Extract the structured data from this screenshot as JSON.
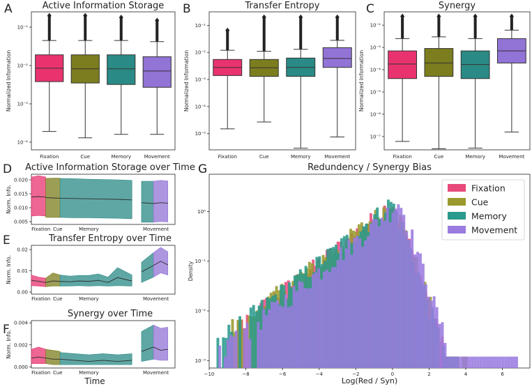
{
  "figure": {
    "categories": [
      "Fixation",
      "Cue",
      "Memory",
      "Movement"
    ],
    "colors": {
      "Fixation": "#e8336f",
      "Cue": "#7c7d1e",
      "Memory": "#2a8a85",
      "Movement": "#9273d6"
    },
    "hist_colors": {
      "Fixation": "#e84a7a",
      "Cue": "#9a9a2e",
      "Memory": "#2a9a8c",
      "Movement": "#9a7be0"
    }
  },
  "chart_data": [
    {
      "id": "A",
      "type": "box",
      "panel_label": "A",
      "title": "Active Information Storage",
      "ylabel": "Normalized Information",
      "yscale": "log",
      "yticks": [
        0.0001,
        0.001,
        0.01,
        0.1
      ],
      "yticklabels": [
        "10⁻⁴",
        "10⁻³",
        "10⁻²",
        "10⁻¹"
      ],
      "ylim_log10": [
        -4.2,
        -0.6
      ],
      "categories": [
        "Fixation",
        "Cue",
        "Memory",
        "Movement"
      ],
      "boxes": [
        {
          "whislo": 0.00019,
          "q1": 0.0038,
          "med": 0.0085,
          "q3": 0.019,
          "whishi": 0.045,
          "flier_top": 0.2
        },
        {
          "whislo": 0.00013,
          "q1": 0.0035,
          "med": 0.0082,
          "q3": 0.019,
          "whishi": 0.045,
          "flier_top": 0.2
        },
        {
          "whislo": 0.00016,
          "q1": 0.0032,
          "med": 0.0082,
          "q3": 0.019,
          "whishi": 0.045,
          "flier_top": 0.18
        },
        {
          "whislo": 0.00016,
          "q1": 0.0027,
          "med": 0.0072,
          "q3": 0.017,
          "whishi": 0.042,
          "flier_top": 0.15
        }
      ]
    },
    {
      "id": "B",
      "type": "box",
      "panel_label": "B",
      "title": "Transfer Entropy",
      "ylabel": "Normalized Information",
      "yscale": "log",
      "yticks": [
        1e-05,
        0.0001,
        0.001,
        0.01,
        0.1
      ],
      "yticklabels": [
        "10⁻⁵",
        "10⁻⁴",
        "10⁻³",
        "10⁻²",
        "10⁻¹"
      ],
      "ylim_log10": [
        -5.6,
        -0.5
      ],
      "categories": [
        "Fixation",
        "Cue",
        "Memory",
        "Movement"
      ],
      "boxes": [
        {
          "whislo": 1.5e-05,
          "q1": 0.0014,
          "med": 0.0028,
          "q3": 0.0055,
          "whishi": 0.012,
          "flier_top": 0.065
        },
        {
          "whislo": 2.7e-05,
          "q1": 0.0013,
          "med": 0.0027,
          "q3": 0.0055,
          "whishi": 0.011,
          "flier_top": 0.2
        },
        {
          "whislo": 2.9e-06,
          "q1": 0.0013,
          "med": 0.0028,
          "q3": 0.0062,
          "whishi": 0.013,
          "flier_top": 0.2
        },
        {
          "whislo": 7.5e-06,
          "q1": 0.0028,
          "med": 0.006,
          "q3": 0.015,
          "whishi": 0.028,
          "flier_top": 0.2
        }
      ]
    },
    {
      "id": "C",
      "type": "box",
      "panel_label": "C",
      "title": "Synergy",
      "ylabel": "Normalized Information",
      "yscale": "log",
      "yticks": [
        1e-07,
        1e-06,
        1e-05,
        0.0001,
        0.001,
        0.01
      ],
      "yticklabels": [
        "10⁻⁷",
        "10⁻⁶",
        "10⁻⁵",
        "10⁻⁴",
        "10⁻³",
        "10⁻²"
      ],
      "ylim_log10": [
        -7.6,
        -1.4
      ],
      "categories": [
        "Fixation",
        "Cue",
        "Memory",
        "Movement"
      ],
      "boxes": [
        {
          "whislo": 6e-08,
          "q1": 4e-05,
          "med": 0.00018,
          "q3": 0.0007,
          "whishi": 0.0025,
          "flier_top": 0.025
        },
        {
          "whislo": 2.8e-08,
          "q1": 5e-05,
          "med": 0.0002,
          "q3": 0.0009,
          "whishi": 0.003,
          "flier_top": 0.025
        },
        {
          "whislo": 3e-08,
          "q1": 4e-05,
          "med": 0.00017,
          "q3": 0.0007,
          "whishi": 0.0025,
          "flier_top": 0.025
        },
        {
          "whislo": 1.6e-07,
          "q1": 0.0002,
          "med": 0.0007,
          "q3": 0.0025,
          "whishi": 0.006,
          "flier_top": 0.025
        }
      ]
    },
    {
      "id": "D",
      "type": "area",
      "panel_label": "D",
      "title": "Active Information Storage over Time",
      "ylabel": "Norm. Info.",
      "yticks": [
        0.005,
        0.01,
        0.015,
        0.02
      ],
      "yticklabels": [
        "0.005",
        "0.010",
        "0.015",
        "0.020"
      ],
      "ylim": [
        0.004,
        0.022
      ],
      "xlim": [
        0,
        30
      ],
      "phase_labels": [
        "Fixation",
        "Cue",
        "Memory",
        "Movement"
      ],
      "phase_label_x": [
        2,
        5.5,
        12,
        26
      ],
      "segments": [
        {
          "phase": "Fixation",
          "x": [
            0,
            1.5,
            3
          ],
          "mean": [
            0.0138,
            0.014,
            0.0138
          ],
          "lo": [
            0.007,
            0.0072,
            0.007
          ],
          "hi": [
            0.021,
            0.0215,
            0.021
          ]
        },
        {
          "phase": "Cue",
          "x": [
            3,
            4.5,
            6
          ],
          "mean": [
            0.0136,
            0.0135,
            0.0134
          ],
          "lo": [
            0.0065,
            0.0065,
            0.0065
          ],
          "hi": [
            0.0205,
            0.0206,
            0.0206
          ]
        },
        {
          "phase": "Memory",
          "x": [
            6,
            9,
            12,
            15,
            18,
            21
          ],
          "mean": [
            0.0134,
            0.0133,
            0.0132,
            0.0131,
            0.013,
            0.0128
          ],
          "lo": [
            0.0065,
            0.0064,
            0.0064,
            0.0063,
            0.0062,
            0.006
          ],
          "hi": [
            0.0205,
            0.0204,
            0.0202,
            0.0201,
            0.02,
            0.0198
          ]
        },
        {
          "phase": "Memory",
          "x": [
            23,
            25.5
          ],
          "mean": [
            0.0118,
            0.0115
          ],
          "lo": [
            0.0048,
            0.0048
          ],
          "hi": [
            0.0195,
            0.0195
          ]
        },
        {
          "phase": "Movement",
          "x": [
            25.5,
            27,
            28.5
          ],
          "mean": [
            0.0115,
            0.0118,
            0.0116
          ],
          "lo": [
            0.0048,
            0.005,
            0.0049
          ],
          "hi": [
            0.0195,
            0.0198,
            0.0196
          ]
        }
      ]
    },
    {
      "id": "E",
      "type": "area",
      "panel_label": "E",
      "title": "Transfer Entropy over Time",
      "ylabel": "Norm. Info.",
      "yticks": [
        0.0,
        0.01,
        0.02
      ],
      "yticklabels": [
        "0.00",
        "0.01",
        "0.02"
      ],
      "ylim": [
        -0.001,
        0.022
      ],
      "xlim": [
        0,
        30
      ],
      "phase_labels": [
        "Fixation",
        "Cue",
        "Memory",
        "Movement"
      ],
      "phase_label_x": [
        2,
        5.5,
        12,
        26
      ],
      "segments": [
        {
          "phase": "Fixation",
          "x": [
            0,
            1.5,
            3
          ],
          "mean": [
            0.0055,
            0.005,
            0.0045
          ],
          "lo": [
            0.003,
            0.0028,
            0.0025
          ],
          "hi": [
            0.008,
            0.007,
            0.0065
          ]
        },
        {
          "phase": "Cue",
          "x": [
            3,
            4.5,
            6
          ],
          "mean": [
            0.0045,
            0.0052,
            0.005
          ],
          "lo": [
            0.0025,
            0.0028,
            0.0028
          ],
          "hi": [
            0.0065,
            0.009,
            0.008
          ]
        },
        {
          "phase": "Memory",
          "x": [
            6,
            8,
            10,
            12,
            14,
            16,
            18,
            21
          ],
          "mean": [
            0.005,
            0.0048,
            0.0052,
            0.005,
            0.0055,
            0.0045,
            0.0068,
            0.0052
          ],
          "lo": [
            0.0028,
            0.0028,
            0.003,
            0.0028,
            0.003,
            0.0028,
            0.003,
            0.0028
          ],
          "hi": [
            0.008,
            0.0075,
            0.0078,
            0.0078,
            0.0085,
            0.007,
            0.0115,
            0.008
          ]
        },
        {
          "phase": "Memory",
          "x": [
            23,
            25.5
          ],
          "mean": [
            0.0095,
            0.0125
          ],
          "lo": [
            0.0045,
            0.007
          ],
          "hi": [
            0.014,
            0.0185
          ]
        },
        {
          "phase": "Movement",
          "x": [
            25.5,
            27,
            28.5
          ],
          "mean": [
            0.0125,
            0.0145,
            0.0128
          ],
          "lo": [
            0.007,
            0.009,
            0.008
          ],
          "hi": [
            0.0185,
            0.021,
            0.019
          ]
        }
      ]
    },
    {
      "id": "F",
      "type": "area",
      "panel_label": "F",
      "title": "Synergy over Time",
      "ylabel": "Norm. Info.",
      "xlabel": "Time",
      "yticks": [
        0.0,
        0.002,
        0.004
      ],
      "yticklabels": [
        "0.000",
        "0.002",
        "0.004"
      ],
      "ylim": [
        -0.0001,
        0.0042
      ],
      "xlim": [
        0,
        30
      ],
      "phase_labels": [
        "Fixation",
        "Cue",
        "Memory",
        "Movement"
      ],
      "phase_label_x": [
        2,
        5.5,
        12,
        26
      ],
      "segments": [
        {
          "phase": "Fixation",
          "x": [
            0,
            1.5,
            3
          ],
          "mean": [
            0.0008,
            0.0009,
            0.0008
          ],
          "lo": [
            0.0003,
            0.0003,
            0.0003
          ],
          "hi": [
            0.0016,
            0.0018,
            0.0016
          ]
        },
        {
          "phase": "Cue",
          "x": [
            3,
            4.5,
            6
          ],
          "mean": [
            0.0008,
            0.0007,
            0.0007
          ],
          "lo": [
            0.0003,
            0.0002,
            0.0002
          ],
          "hi": [
            0.0016,
            0.0015,
            0.0014
          ]
        },
        {
          "phase": "Memory",
          "x": [
            6,
            9,
            12,
            15,
            18,
            21
          ],
          "mean": [
            0.0007,
            0.0006,
            0.0005,
            0.0006,
            0.0005,
            0.0006
          ],
          "lo": [
            0.0002,
            0.0002,
            0.0002,
            0.0002,
            0.0002,
            0.0002
          ],
          "hi": [
            0.0013,
            0.0012,
            0.0011,
            0.0012,
            0.0011,
            0.0012
          ]
        },
        {
          "phase": "Memory",
          "x": [
            23,
            25.5
          ],
          "mean": [
            0.0014,
            0.0018
          ],
          "lo": [
            0.0005,
            0.0007
          ],
          "hi": [
            0.0032,
            0.0038
          ]
        },
        {
          "phase": "Movement",
          "x": [
            25.5,
            27,
            28.5
          ],
          "mean": [
            0.0018,
            0.0015,
            0.0016
          ],
          "lo": [
            0.0007,
            0.0006,
            0.0006
          ],
          "hi": [
            0.0038,
            0.0035,
            0.0036
          ]
        }
      ]
    },
    {
      "id": "G",
      "type": "histogram",
      "panel_label": "G",
      "title": "Redundency / Synergy Bias",
      "xlabel": "Log(Red / Syn)",
      "ylabel": "Density",
      "yscale": "log",
      "xlim": [
        -10,
        7.5
      ],
      "xticks": [
        -10,
        -8,
        -6,
        -4,
        -2,
        0,
        2,
        4,
        6
      ],
      "xticklabels": [
        "−10",
        "−8",
        "−6",
        "−4",
        "−2",
        "0",
        "2",
        "4",
        "6"
      ],
      "yticks": [
        0.001,
        0.01,
        0.1,
        1
      ],
      "yticklabels": [
        "10⁻³",
        "10⁻²",
        "10⁻¹",
        "10⁰"
      ],
      "ylim_log10": [
        -3.15,
        0.75
      ],
      "legend": [
        "Fixation",
        "Cue",
        "Memory",
        "Movement"
      ],
      "legend_position": "top-right",
      "bin_width": 0.15,
      "density_profile": {
        "peak_x": 0.0,
        "peak_density": 1.6,
        "left_floor_x": -9.8,
        "right_end_x": 6.8,
        "left_slope_log10_per_unit": 0.33,
        "right_slope_log10_per_unit": 0.95
      }
    }
  ]
}
